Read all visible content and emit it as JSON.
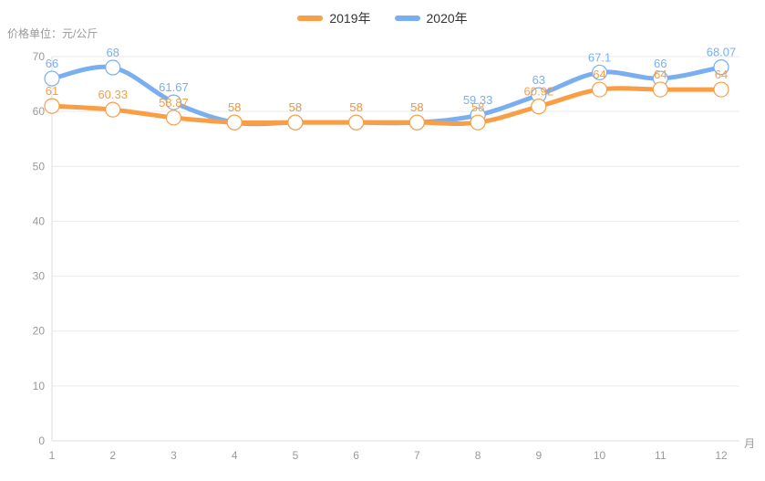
{
  "chart_data": {
    "type": "line",
    "title": "",
    "unit_label": "价格单位：元/公斤",
    "x_axis_name": "月",
    "categories": [
      "1",
      "2",
      "3",
      "4",
      "5",
      "6",
      "7",
      "8",
      "9",
      "10",
      "11",
      "12"
    ],
    "series": [
      {
        "name": "2019年",
        "color": "#FA9E45",
        "values": [
          61,
          60.33,
          58.87,
          58,
          58,
          58,
          58,
          58,
          60.92,
          64,
          64,
          64
        ]
      },
      {
        "name": "2020年",
        "color": "#79AFF1",
        "values": [
          66,
          68,
          61.67,
          58,
          58,
          58,
          58,
          59.33,
          63,
          67.1,
          66,
          68.07
        ]
      }
    ],
    "ylim": [
      0,
      70
    ],
    "ytick_step": 10,
    "yticks": [
      0,
      10,
      20,
      30,
      40,
      50,
      60,
      70
    ],
    "grid": true,
    "smooth": true,
    "marker": "empty-circle",
    "legend_position": "top-center",
    "colors": {
      "grid_line": "#E9E9E9",
      "axis_line": "#DDDDDD",
      "tick_label": "#999999",
      "legend_text": "#333333",
      "background": "#FFFFFF"
    }
  }
}
